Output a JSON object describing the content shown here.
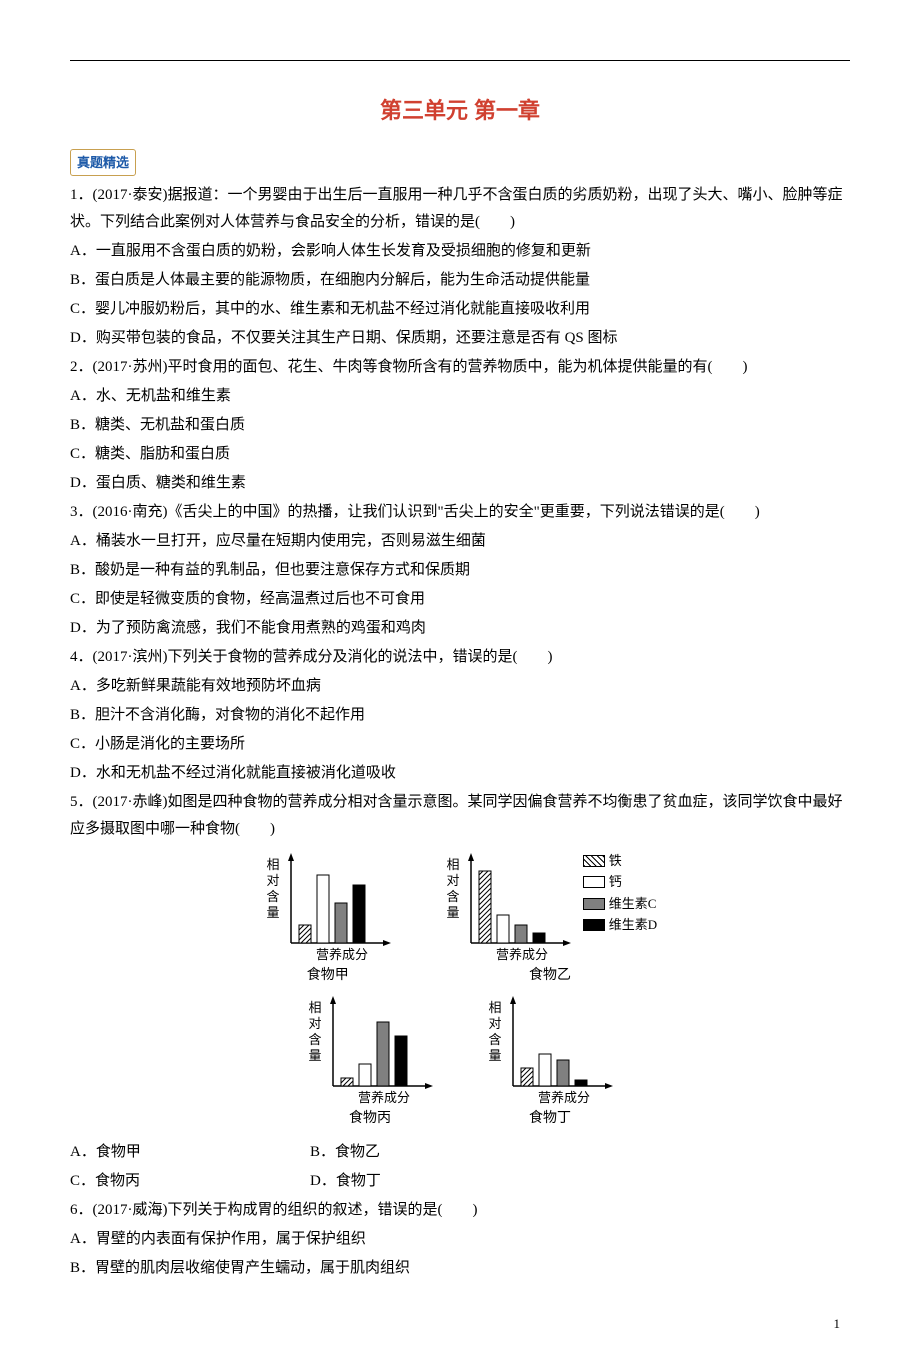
{
  "title": "第三单元 第一章",
  "sectionTag": "真题精选",
  "pageNum": "1",
  "legend": {
    "iron": "铁",
    "calcium": "钙",
    "vitc": "维生素C",
    "vitd": "维生素D"
  },
  "chartAxis": {
    "y": "相对含量",
    "x": "营养成分"
  },
  "chartLabels": {
    "jia": "食物甲",
    "yi": "食物乙",
    "bing": "食物丙",
    "ding": "食物丁"
  },
  "chartStyle": {
    "width": 130,
    "height": 110,
    "axisColor": "#000000",
    "barWidth": 12,
    "barGap": 6,
    "originX": 28,
    "baselineY": 92,
    "patternHatch": "hatch",
    "colorCalcium": "#ffffff",
    "colorVitC": "#808080",
    "colorVitD": "#000000",
    "fontSize": 13
  },
  "chartData": {
    "jia": {
      "iron": 18,
      "calcium": 68,
      "vitc": 40,
      "vitd": 58
    },
    "yi": {
      "iron": 72,
      "calcium": 28,
      "vitc": 18,
      "vitd": 10
    },
    "bing": {
      "iron": 8,
      "calcium": 22,
      "vitc": 64,
      "vitd": 50
    },
    "ding": {
      "iron": 18,
      "calcium": 32,
      "vitc": 26,
      "vitd": 6
    }
  },
  "q1": {
    "stem": "1．(2017·泰安)据报道：一个男婴由于出生后一直服用一种几乎不含蛋白质的劣质奶粉，出现了头大、嘴小、脸肿等症状。下列结合此案例对人体营养与食品安全的分析，错误的是(　　)",
    "a": "A．一直服用不含蛋白质的奶粉，会影响人体生长发育及受损细胞的修复和更新",
    "b": "B．蛋白质是人体最主要的能源物质，在细胞内分解后，能为生命活动提供能量",
    "c": "C．婴儿冲服奶粉后，其中的水、维生素和无机盐不经过消化就能直接吸收利用",
    "d": "D．购买带包装的食品，不仅要关注其生产日期、保质期，还要注意是否有 QS 图标"
  },
  "q2": {
    "stem": "2．(2017·苏州)平时食用的面包、花生、牛肉等食物所含有的营养物质中，能为机体提供能量的有(　　)",
    "a": "A．水、无机盐和维生素",
    "b": "B．糖类、无机盐和蛋白质",
    "c": "C．糖类、脂肪和蛋白质",
    "d": "D．蛋白质、糖类和维生素"
  },
  "q3": {
    "stem": "3．(2016·南充)《舌尖上的中国》的热播，让我们认识到\"舌尖上的安全\"更重要，下列说法错误的是(　　)",
    "a": "A．桶装水一旦打开，应尽量在短期内使用完，否则易滋生细菌",
    "b": "B．酸奶是一种有益的乳制品，但也要注意保存方式和保质期",
    "c": "C．即使是轻微变质的食物，经高温煮过后也不可食用",
    "d": "D．为了预防禽流感，我们不能食用煮熟的鸡蛋和鸡肉"
  },
  "q4": {
    "stem": "4．(2017·滨州)下列关于食物的营养成分及消化的说法中，错误的是(　　)",
    "a": "A．多吃新鲜果蔬能有效地预防坏血病",
    "b": "B．胆汁不含消化酶，对食物的消化不起作用",
    "c": "C．小肠是消化的主要场所",
    "d": "D．水和无机盐不经过消化就能直接被消化道吸收"
  },
  "q5": {
    "stem": "5．(2017·赤峰)如图是四种食物的营养成分相对含量示意图。某同学因偏食营养不均衡患了贫血症，该同学饮食中最好应多摄取图中哪一种食物(　　)",
    "a": "A．食物甲",
    "b": "B．食物乙",
    "c": "C．食物丙",
    "d": "D．食物丁"
  },
  "q6": {
    "stem": "6．(2017·威海)下列关于构成胃的组织的叙述，错误的是(　　)",
    "a": "A．胃壁的内表面有保护作用，属于保护组织",
    "b": "B．胃壁的肌肉层收缩使胃产生蠕动，属于肌肉组织"
  }
}
